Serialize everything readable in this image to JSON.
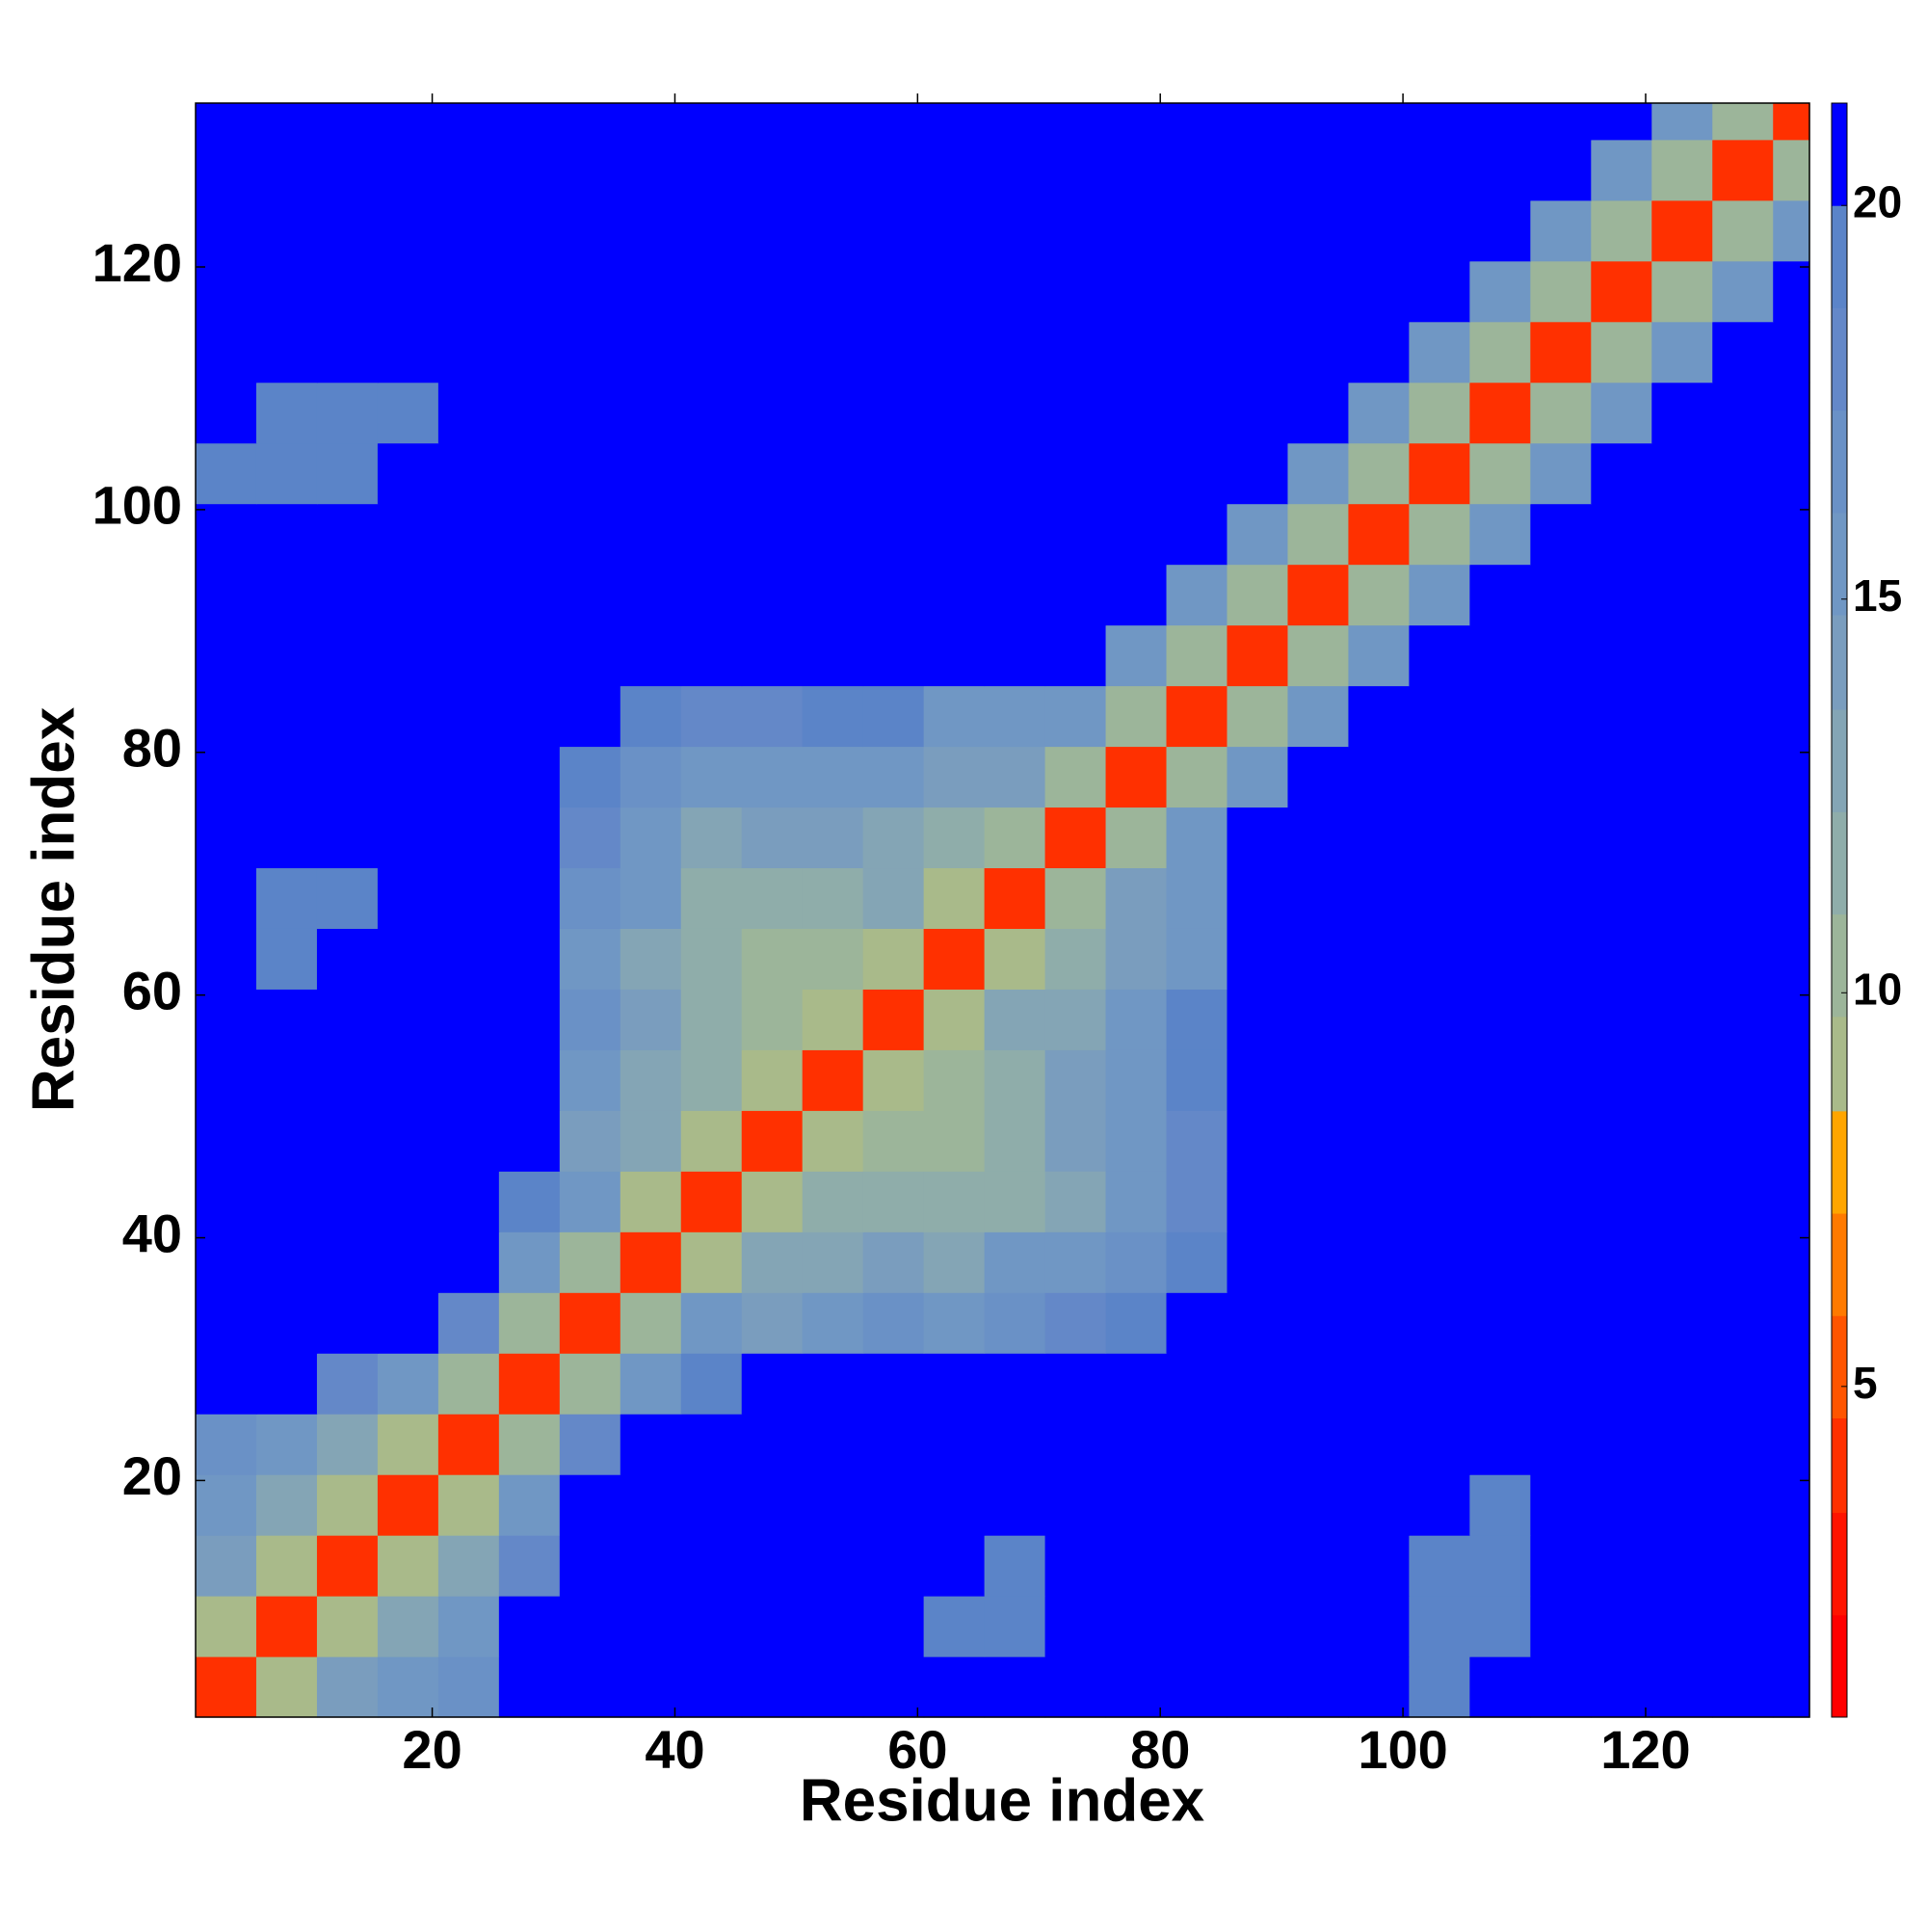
{
  "chart_data": {
    "type": "heatmap",
    "xlabel": "Residue index",
    "ylabel": "Residue index",
    "x_bins": [
      0.5,
      5.5,
      10.5,
      15.5,
      20.5,
      25.5,
      30.5,
      35.5,
      40.5,
      45.5,
      50.5,
      55.5,
      60.5,
      65.5,
      70.5,
      75.5,
      80.5,
      85.5,
      90.5,
      95.5,
      100.5,
      105.5,
      110.5,
      115.5,
      120.5,
      125.5,
      130.5,
      133.5
    ],
    "y_bins": [
      0.5,
      5.5,
      10.5,
      15.5,
      20.5,
      25.5,
      30.5,
      35.5,
      40.5,
      45.5,
      50.5,
      55.5,
      60.5,
      65.5,
      70.5,
      75.5,
      80.5,
      85.5,
      90.5,
      95.5,
      100.5,
      105.5,
      110.5,
      115.5,
      120.5,
      125.5,
      130.5,
      133.5
    ],
    "xlim": [
      0.5,
      133.5
    ],
    "ylim": [
      0.5,
      133.5
    ],
    "xticks": [
      20,
      40,
      60,
      80,
      100,
      120
    ],
    "yticks": [
      20,
      40,
      60,
      80,
      100,
      120
    ],
    "z": [
      [
        4,
        9,
        14,
        15,
        17,
        21,
        21,
        21,
        21,
        21,
        21,
        21,
        21,
        21,
        21,
        21,
        21,
        21,
        21,
        21,
        20,
        21,
        21,
        21,
        21,
        21,
        21
      ],
      [
        9,
        4,
        9,
        13,
        16,
        21,
        21,
        21,
        21,
        21,
        21,
        21,
        20,
        20,
        21,
        21,
        21,
        21,
        21,
        21,
        19,
        19,
        21,
        21,
        21,
        21,
        21
      ],
      [
        14,
        9,
        4,
        9,
        13,
        18,
        21,
        21,
        21,
        21,
        21,
        21,
        21,
        20,
        21,
        21,
        21,
        21,
        21,
        21,
        20,
        19,
        21,
        21,
        21,
        21,
        21
      ],
      [
        15,
        13,
        9,
        4,
        9,
        15,
        21,
        21,
        21,
        21,
        21,
        21,
        21,
        21,
        21,
        21,
        21,
        21,
        21,
        21,
        21,
        20,
        21,
        21,
        21,
        21,
        21
      ],
      [
        17,
        16,
        13,
        9,
        4,
        10,
        18,
        21,
        21,
        21,
        21,
        21,
        21,
        21,
        21,
        21,
        21,
        21,
        21,
        21,
        21,
        21,
        21,
        21,
        21,
        21,
        21
      ],
      [
        21,
        21,
        18,
        15,
        10,
        4,
        10,
        16,
        19,
        21,
        21,
        21,
        21,
        21,
        21,
        21,
        21,
        21,
        21,
        21,
        21,
        21,
        21,
        21,
        21,
        21,
        21
      ],
      [
        21,
        21,
        21,
        21,
        18,
        10,
        4,
        10,
        15,
        14,
        16,
        17,
        15,
        17,
        18,
        19,
        21,
        21,
        21,
        21,
        21,
        21,
        21,
        21,
        21,
        21,
        21
      ],
      [
        21,
        21,
        21,
        21,
        21,
        16,
        10,
        4,
        9,
        13,
        13,
        14,
        13,
        15,
        16,
        17,
        19,
        21,
        21,
        21,
        21,
        21,
        21,
        21,
        21,
        21,
        21
      ],
      [
        21,
        21,
        21,
        21,
        21,
        19,
        15,
        9,
        4,
        9,
        12,
        12,
        12,
        12,
        13,
        16,
        18,
        21,
        21,
        21,
        21,
        21,
        21,
        21,
        21,
        21,
        21
      ],
      [
        21,
        21,
        21,
        21,
        21,
        21,
        14,
        13,
        9,
        4,
        9,
        11,
        10,
        12,
        14,
        16,
        18,
        21,
        21,
        21,
        21,
        21,
        21,
        21,
        21,
        21,
        21
      ],
      [
        21,
        21,
        21,
        21,
        21,
        21,
        16,
        13,
        12,
        9,
        4,
        9,
        11,
        12,
        14,
        15,
        19,
        21,
        21,
        21,
        21,
        21,
        21,
        21,
        21,
        21,
        21
      ],
      [
        21,
        21,
        21,
        21,
        21,
        21,
        17,
        14,
        12,
        11,
        9,
        4,
        9,
        13,
        13,
        16,
        19,
        21,
        21,
        21,
        21,
        21,
        21,
        21,
        21,
        21,
        21
      ],
      [
        21,
        20,
        21,
        21,
        21,
        21,
        15,
        13,
        12,
        10,
        11,
        9,
        4,
        9,
        12,
        14,
        16,
        21,
        21,
        21,
        21,
        21,
        21,
        21,
        21,
        21,
        21
      ],
      [
        21,
        20,
        20,
        21,
        21,
        21,
        17,
        15,
        12,
        12,
        12,
        13,
        9,
        4,
        10,
        14,
        16,
        21,
        21,
        21,
        21,
        21,
        21,
        21,
        21,
        21,
        21
      ],
      [
        21,
        21,
        21,
        21,
        21,
        21,
        18,
        16,
        13,
        14,
        14,
        13,
        12,
        10,
        4,
        10,
        16,
        21,
        21,
        21,
        21,
        21,
        21,
        21,
        21,
        21,
        21
      ],
      [
        21,
        21,
        21,
        21,
        21,
        21,
        19,
        17,
        16,
        16,
        15,
        16,
        14,
        14,
        10,
        4,
        10,
        16,
        21,
        21,
        21,
        21,
        21,
        21,
        21,
        21,
        21
      ],
      [
        21,
        21,
        21,
        21,
        21,
        21,
        21,
        19,
        18,
        18,
        19,
        19,
        16,
        16,
        16,
        10,
        4,
        10,
        16,
        21,
        21,
        21,
        21,
        21,
        21,
        21,
        21
      ],
      [
        21,
        21,
        21,
        21,
        21,
        21,
        21,
        21,
        21,
        21,
        21,
        21,
        21,
        21,
        21,
        16,
        10,
        4,
        10,
        16,
        21,
        21,
        21,
        21,
        21,
        21,
        21
      ],
      [
        21,
        21,
        21,
        21,
        21,
        21,
        21,
        21,
        21,
        21,
        21,
        21,
        21,
        21,
        21,
        21,
        16,
        10,
        4,
        10,
        16,
        21,
        21,
        21,
        21,
        21,
        21
      ],
      [
        21,
        21,
        21,
        21,
        21,
        21,
        21,
        21,
        21,
        21,
        21,
        21,
        21,
        21,
        21,
        21,
        21,
        16,
        10,
        4,
        10,
        16,
        21,
        21,
        21,
        21,
        21
      ],
      [
        20,
        19,
        20,
        21,
        21,
        21,
        21,
        21,
        21,
        21,
        21,
        21,
        21,
        21,
        21,
        21,
        21,
        21,
        16,
        10,
        4,
        10,
        16,
        21,
        21,
        21,
        21
      ],
      [
        21,
        19,
        19,
        20,
        21,
        21,
        21,
        21,
        21,
        21,
        21,
        21,
        21,
        21,
        21,
        21,
        21,
        21,
        21,
        16,
        10,
        4,
        10,
        16,
        21,
        21,
        21
      ],
      [
        21,
        21,
        21,
        21,
        21,
        21,
        21,
        21,
        21,
        21,
        21,
        21,
        21,
        21,
        21,
        21,
        21,
        21,
        21,
        21,
        16,
        10,
        4,
        10,
        16,
        21,
        21
      ],
      [
        21,
        21,
        21,
        21,
        21,
        21,
        21,
        21,
        21,
        21,
        21,
        21,
        21,
        21,
        21,
        21,
        21,
        21,
        21,
        21,
        21,
        16,
        10,
        4,
        10,
        16,
        21
      ],
      [
        21,
        21,
        21,
        21,
        21,
        21,
        21,
        21,
        21,
        21,
        21,
        21,
        21,
        21,
        21,
        21,
        21,
        21,
        21,
        21,
        21,
        21,
        16,
        10,
        4,
        10,
        16
      ],
      [
        21,
        21,
        21,
        21,
        21,
        21,
        21,
        21,
        21,
        21,
        21,
        21,
        21,
        21,
        21,
        21,
        21,
        21,
        21,
        21,
        21,
        21,
        21,
        16,
        10,
        4,
        10
      ],
      [
        21,
        21,
        21,
        21,
        21,
        21,
        21,
        21,
        21,
        21,
        21,
        21,
        21,
        21,
        21,
        21,
        21,
        21,
        21,
        21,
        21,
        21,
        21,
        21,
        16,
        10,
        4
      ]
    ],
    "colorbar": {
      "lim": [
        0.8,
        21.3
      ],
      "ticks": [
        5,
        10,
        15,
        20
      ],
      "bands": [
        [
          2.1,
          "#ff0000"
        ],
        [
          3.4,
          "#ff1400"
        ],
        [
          4.6,
          "#ff3000"
        ],
        [
          5.9,
          "#ff5500"
        ],
        [
          7.2,
          "#ff7a00"
        ],
        [
          8.5,
          "#ffa500"
        ],
        [
          9.7,
          "#a9ba8a"
        ],
        [
          11,
          "#9cb59a"
        ],
        [
          12.3,
          "#8fadaa"
        ],
        [
          13.6,
          "#84a5b5"
        ],
        [
          14.8,
          "#7a9dbe"
        ],
        [
          16.1,
          "#7097c4"
        ],
        [
          17.4,
          "#6a91c6"
        ],
        [
          18.7,
          "#6488c8"
        ],
        [
          20,
          "#5b84c8"
        ],
        [
          21.3,
          "#0000ff"
        ]
      ]
    }
  }
}
